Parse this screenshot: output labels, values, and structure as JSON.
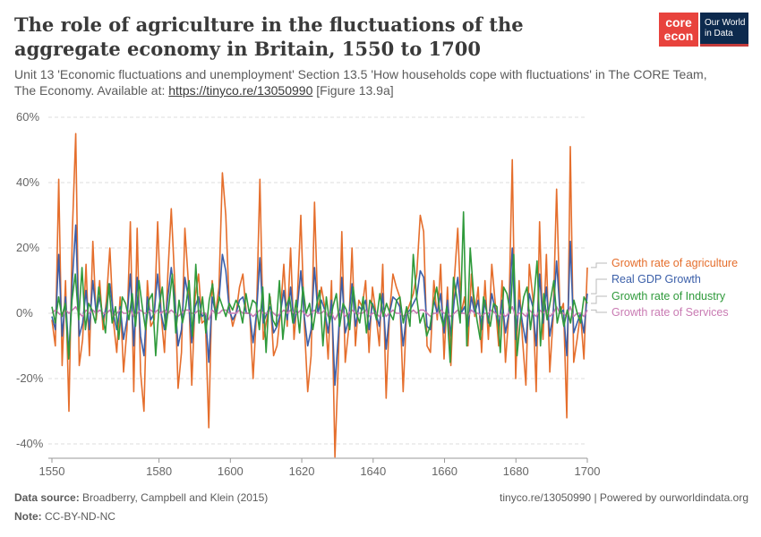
{
  "header": {
    "title": "The role of agriculture in the fluctuations of the aggregate economy in Britain, 1550 to 1700",
    "subtitle_prefix": "Unit 13 'Economic fluctuations and unemployment' Section 13.5 'How households cope with fluctuations' in The CORE Team, The Economy. Available at: ",
    "subtitle_link": "https://tinyco.re/13050990",
    "subtitle_suffix": " [Figure 13.9a]"
  },
  "logos": {
    "core_line1": "core",
    "core_line2": "econ",
    "owid_line1": "Our World",
    "owid_line2": "in Data",
    "core_color": "#e8433d",
    "owid_color": "#0d2a4e"
  },
  "footer": {
    "source_label": "Data source:",
    "source_value": "Broadberry, Campbell and Klein (2015)",
    "note_label": "Note:",
    "note_value": "CC-BY-ND-NC",
    "right": "tinyco.re/13050990 | Powered by ourworldindata.org"
  },
  "chart_data": {
    "type": "line",
    "x_start": 1550,
    "x_end": 1700,
    "xlim": [
      1549,
      1700
    ],
    "ylim": [
      -44,
      60
    ],
    "y_ticks": [
      -40,
      -20,
      0,
      20,
      40,
      60
    ],
    "y_tick_labels": [
      "-40%",
      "-20%",
      "0%",
      "20%",
      "40%",
      "60%"
    ],
    "x_ticks": [
      1550,
      1580,
      1600,
      1620,
      1640,
      1660,
      1680,
      1700
    ],
    "x_tick_labels": [
      "1550",
      "1580",
      "1600",
      "1620",
      "1640",
      "1660",
      "1680",
      "1700"
    ],
    "grid": "horizontal dashed",
    "legend_position": "right",
    "series": [
      {
        "name": "Growth rate of agriculture",
        "color": "#e56e2c",
        "values": [
          -2,
          -10,
          41,
          -16,
          10,
          -30,
          25,
          55,
          -16,
          -8,
          15,
          -13,
          22,
          -2,
          10,
          -5,
          4,
          20,
          -2,
          -12,
          5,
          -18,
          -5,
          28,
          -24,
          26,
          -18,
          -30,
          10,
          -4,
          -2,
          28,
          0,
          -12,
          12,
          32,
          10,
          -23,
          -12,
          26,
          10,
          -22,
          5,
          12,
          -3,
          -2,
          -35,
          10,
          0,
          8,
          43,
          30,
          2,
          -4,
          0,
          8,
          12,
          0,
          0,
          -20,
          0,
          41,
          -8,
          -2,
          5,
          -13,
          -10,
          0,
          15,
          -4,
          20,
          -8,
          5,
          30,
          -3,
          -24,
          -13,
          34,
          0,
          8,
          2,
          -14,
          10,
          -44,
          -15,
          25,
          -15,
          -5,
          20,
          -10,
          4,
          2,
          10,
          -12,
          8,
          0,
          -10,
          15,
          -26,
          0,
          12,
          8,
          5,
          -24,
          0,
          3,
          6,
          12,
          30,
          25,
          -10,
          -12,
          10,
          -2,
          15,
          -14,
          8,
          -16,
          10,
          26,
          0,
          5,
          -10,
          12,
          -1,
          8,
          -12,
          10,
          -8,
          15,
          3,
          -10,
          10,
          -15,
          0,
          47,
          -20,
          10,
          -8,
          -22,
          15,
          5,
          -24,
          28,
          -8,
          18,
          -18,
          -1,
          38,
          0,
          3,
          -32,
          51,
          -15,
          -8,
          0,
          -14,
          14
        ],
        "label_color": "#e56e2c"
      },
      {
        "name": "Real GDP Growth",
        "color": "#3b5fa9",
        "values": [
          -1,
          -5,
          18,
          -7,
          5,
          -13,
          10,
          27,
          -7,
          -3,
          7,
          -5,
          10,
          0,
          5,
          -2,
          2,
          9,
          0,
          -5,
          2,
          -8,
          -2,
          12,
          -10,
          11,
          -7,
          -13,
          5,
          -2,
          0,
          12,
          0,
          -5,
          5,
          14,
          5,
          -10,
          -5,
          11,
          5,
          -9,
          2,
          5,
          -1,
          0,
          -15,
          5,
          0,
          4,
          18,
          13,
          1,
          -2,
          0,
          4,
          5,
          0,
          0,
          -9,
          0,
          17,
          -3,
          0,
          2,
          -6,
          -4,
          0,
          7,
          -2,
          8,
          -3,
          2,
          13,
          -1,
          -10,
          -5,
          14,
          0,
          4,
          1,
          -6,
          4,
          -22,
          -7,
          11,
          -6,
          -2,
          9,
          -4,
          2,
          1,
          4,
          -5,
          3,
          0,
          -4,
          6,
          -11,
          0,
          5,
          4,
          2,
          -10,
          0,
          1,
          3,
          5,
          13,
          11,
          -4,
          -5,
          4,
          0,
          6,
          -6,
          4,
          -7,
          4,
          11,
          0,
          2,
          -4,
          5,
          0,
          4,
          -5,
          4,
          -3,
          6,
          1,
          -4,
          4,
          -6,
          0,
          20,
          -8,
          4,
          -3,
          -9,
          6,
          2,
          -10,
          12,
          -3,
          8,
          -7,
          0,
          16,
          0,
          1,
          -13,
          22,
          -6,
          -3,
          0,
          -6,
          6
        ],
        "label_color": "#3b5fa9"
      },
      {
        "name": "Growth rate of Industry",
        "color": "#2f9a3b",
        "values": [
          2,
          -3,
          5,
          -1,
          3,
          -14,
          4,
          12,
          -2,
          14,
          -5,
          3,
          1,
          -3,
          8,
          0,
          -6,
          9,
          -3,
          2,
          -8,
          5,
          3,
          -2,
          6,
          -4,
          10,
          2,
          -5,
          4,
          6,
          -13,
          2,
          8,
          -5,
          3,
          12,
          -6,
          4,
          -3,
          2,
          10,
          -7,
          15,
          -3,
          5,
          -6,
          4,
          9,
          -2,
          5,
          2,
          -1,
          3,
          1,
          4,
          2,
          -3,
          6,
          0,
          4,
          3,
          -5,
          8,
          -12,
          6,
          -2,
          -4,
          10,
          -8,
          2,
          5,
          -3,
          4,
          -6,
          8,
          0,
          3,
          -5,
          2,
          7,
          -10,
          5,
          -3,
          2,
          6,
          -4,
          3,
          1,
          -5,
          8,
          0,
          -3,
          5,
          -6,
          4,
          2,
          -2,
          6,
          -1,
          3,
          0,
          -2,
          4,
          5,
          -3,
          2,
          -4,
          18,
          5,
          -3,
          0,
          -7,
          -4,
          3,
          8,
          0,
          -4,
          2,
          -15,
          11,
          5,
          -3,
          31,
          -10,
          20,
          6,
          -2,
          -8,
          5,
          0,
          -4,
          3,
          2,
          -12,
          8,
          6,
          0,
          18,
          -13,
          -2,
          5,
          8,
          -5,
          4,
          16,
          -10,
          6,
          -2,
          4,
          10,
          -3,
          2,
          -4,
          1,
          -3,
          4,
          0,
          -3,
          5,
          3
        ],
        "label_color": "#2f9a3b"
      },
      {
        "name": "Growth rate of Services",
        "color": "#c97bb3",
        "values": [
          0,
          1,
          0,
          -1,
          1,
          0,
          1,
          2,
          0,
          -1,
          1,
          0,
          1,
          0,
          1,
          0,
          0,
          1,
          -1,
          0,
          1,
          0,
          0,
          1,
          -1,
          0,
          1,
          0,
          0,
          1,
          0,
          1,
          0,
          1,
          0,
          1,
          0,
          -1,
          0,
          1,
          1,
          0,
          0,
          1,
          0,
          0,
          -2,
          1,
          0,
          0,
          1,
          1,
          0,
          0,
          0,
          1,
          0,
          0,
          0,
          -1,
          0,
          1,
          0,
          0,
          1,
          0,
          -1,
          0,
          1,
          0,
          1,
          0,
          0,
          1,
          0,
          -1,
          0,
          1,
          0,
          0,
          1,
          -1,
          0,
          -2,
          0,
          1,
          -1,
          0,
          1,
          0,
          0,
          0,
          1,
          -1,
          0,
          0,
          -1,
          1,
          -1,
          0,
          1,
          0,
          0,
          -1,
          0,
          0,
          1,
          0,
          1,
          1,
          0,
          -1,
          0,
          0,
          1,
          0,
          0,
          -1,
          0,
          1,
          0,
          0,
          -1,
          1,
          0,
          0,
          -1,
          0,
          0,
          1,
          0,
          -1,
          0,
          -1,
          0,
          2,
          -1,
          0,
          0,
          -1,
          1,
          0,
          -1,
          1,
          0,
          1,
          -1,
          0,
          2,
          0,
          0,
          -1,
          2,
          -1,
          0,
          0,
          -1,
          1
        ],
        "label_color": "#c97bb3"
      }
    ]
  }
}
